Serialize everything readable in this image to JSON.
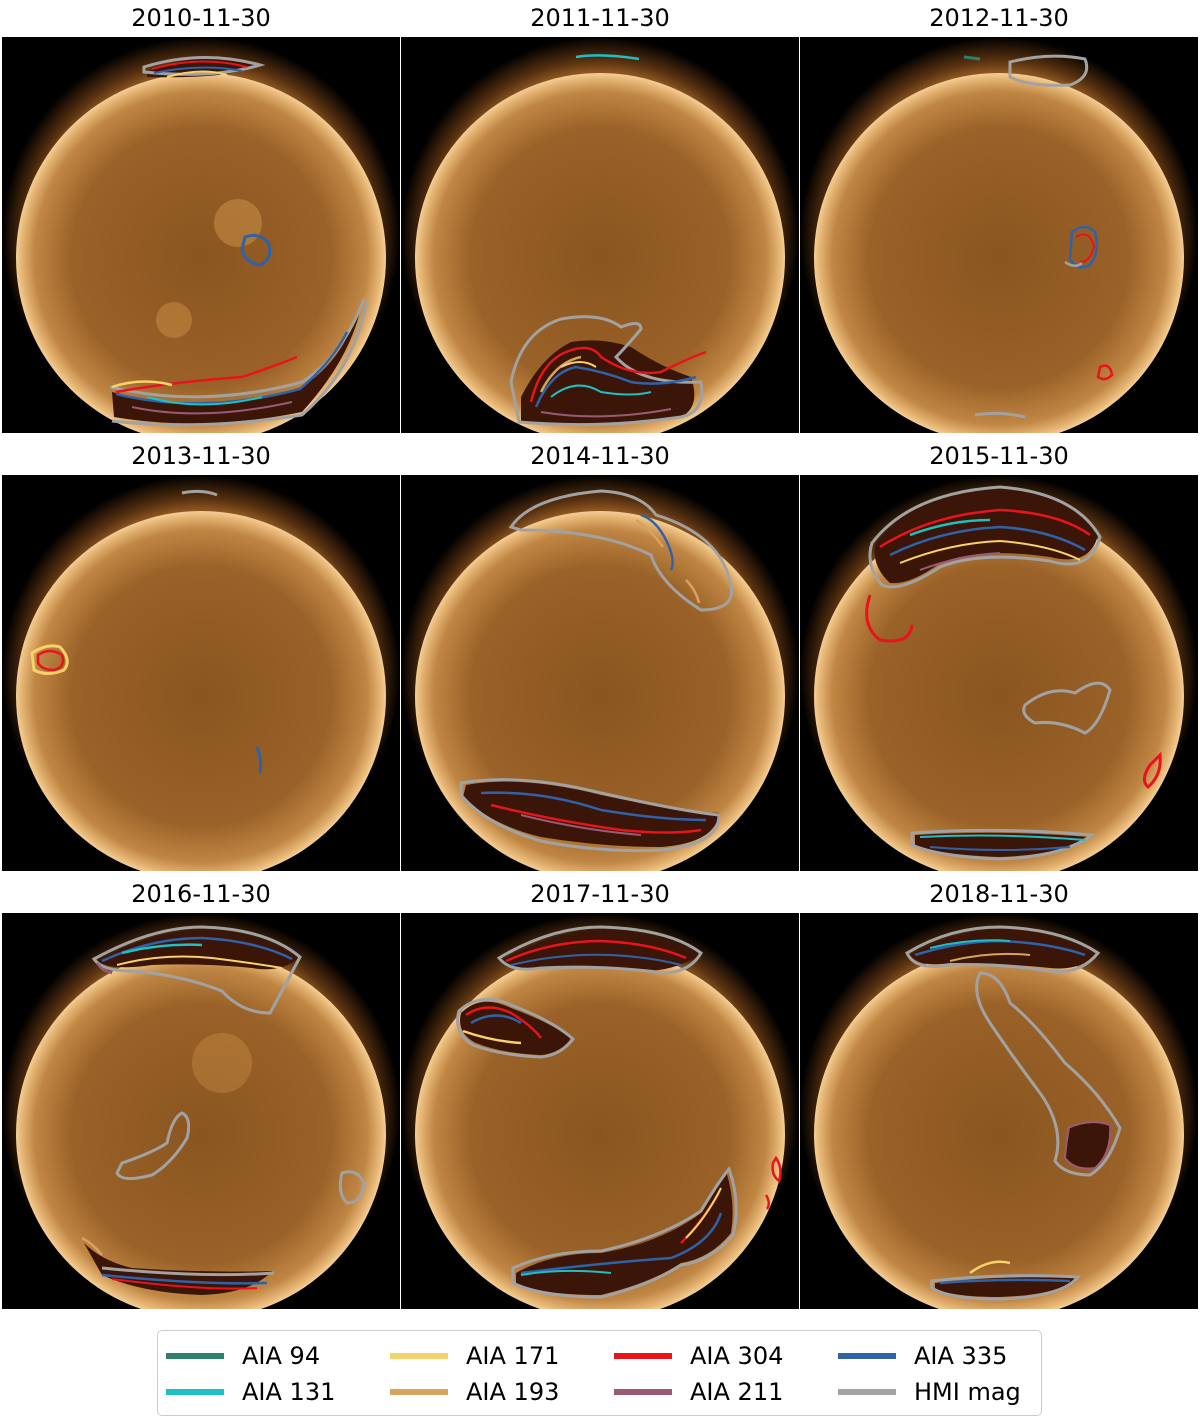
{
  "panels": [
    {
      "date": "2010-11-30"
    },
    {
      "date": "2011-11-30"
    },
    {
      "date": "2012-11-30"
    },
    {
      "date": "2013-11-30"
    },
    {
      "date": "2014-11-30"
    },
    {
      "date": "2015-11-30"
    },
    {
      "date": "2016-11-30"
    },
    {
      "date": "2017-11-30"
    },
    {
      "date": "2018-11-30"
    }
  ],
  "legend": [
    {
      "label": "AIA 94",
      "color": "#2e7f6c"
    },
    {
      "label": "AIA 131",
      "color": "#1fbfc4"
    },
    {
      "label": "AIA 171",
      "color": "#f6d36a"
    },
    {
      "label": "AIA 193",
      "color": "#d6a45e"
    },
    {
      "label": "AIA 304",
      "color": "#e8141b"
    },
    {
      "label": "AIA 211",
      "color": "#9a5a75"
    },
    {
      "label": "AIA 335",
      "color": "#2f62a8"
    },
    {
      "label": "HMI mag",
      "color": "#a2a2a2"
    }
  ],
  "colors": {
    "background": "#ffffff",
    "space": "#000000",
    "disk_center": "#8a5520",
    "disk_limb": "#f0c890",
    "hole_interior": "#3a1508"
  }
}
